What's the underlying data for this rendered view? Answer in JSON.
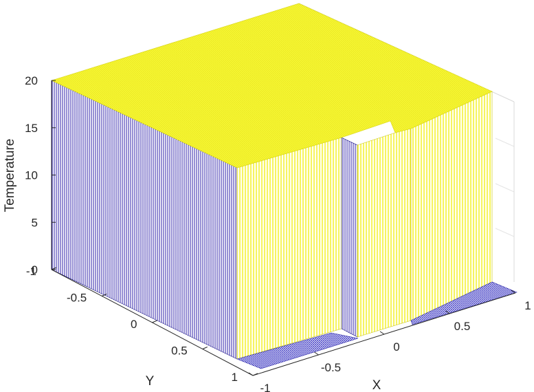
{
  "chart_data": {
    "type": "surface",
    "title": "",
    "xlabel": "X",
    "ylabel": "Y",
    "zlabel": "Temperature",
    "xlim": [
      -1,
      1
    ],
    "ylim": [
      -1,
      1
    ],
    "zlim": [
      0,
      20
    ],
    "x_ticks": [
      "-1",
      "-0.5",
      "0",
      "0.5",
      "1"
    ],
    "y_ticks": [
      "-1",
      "-0.5",
      "0",
      "0.5",
      "1"
    ],
    "z_ticks": [
      "0",
      "5",
      "10",
      "15",
      "20"
    ],
    "z_hot": 20,
    "z_cold": 0,
    "hot_region": "temperature 20 everywhere except a low (0) strip along the Y = 1 edge and a narrow low (0) slot near X ≈ -0.27 for Y > 0.47",
    "colormap": {
      "low": "#2d1fa8",
      "high": "#f2ef22",
      "top": "#f7f733",
      "floor": "#3a35c2"
    },
    "grid": true
  }
}
